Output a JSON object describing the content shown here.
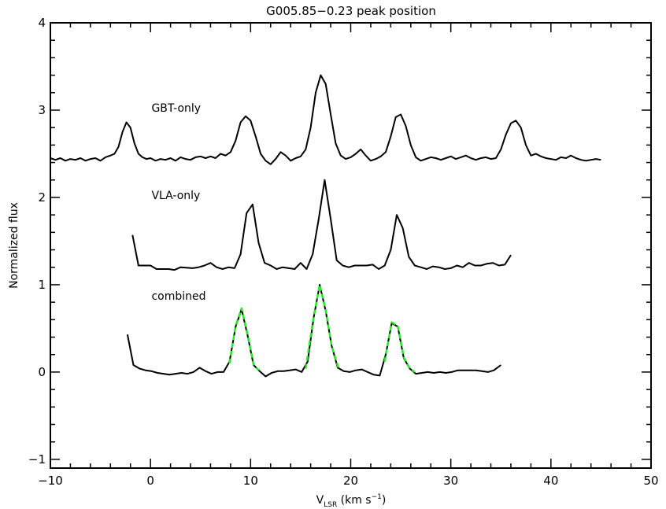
{
  "chart_data": {
    "type": "line",
    "title": "G005.85−0.23 peak position",
    "xlabel_main": "V",
    "xlabel_sub": "LSR",
    "xlabel_unit_open": " (km s",
    "xlabel_exp": "−1",
    "xlabel_unit_close": ")",
    "ylabel": "Normalized flux",
    "xlim": [
      -10,
      50
    ],
    "ylim": [
      -1.1,
      4.0
    ],
    "x_ticks": [
      -10,
      0,
      10,
      20,
      30,
      40,
      50
    ],
    "x_tick_labels": [
      "−10",
      "0",
      "10",
      "20",
      "30",
      "40",
      "50"
    ],
    "y_ticks": [
      -1,
      0,
      1,
      2,
      3,
      4
    ],
    "y_tick_labels": [
      "−1",
      "0",
      "1",
      "2",
      "3",
      "4"
    ],
    "x_minor_step": 2,
    "y_minor_step": 0.2,
    "grid": false,
    "annotations": [
      {
        "text": "GBT-only",
        "x": 0.1,
        "y": 2.98
      },
      {
        "text": "VLA-only",
        "x": 0.1,
        "y": 1.98
      },
      {
        "text": "combined",
        "x": 0.1,
        "y": 0.83
      }
    ],
    "series": [
      {
        "color": "#000000",
        "style": "solid",
        "points": [
          [
            -10,
            2.45
          ],
          [
            -9.5,
            2.43
          ],
          [
            -9,
            2.45
          ],
          [
            -8.5,
            2.42
          ],
          [
            -8,
            2.44
          ],
          [
            -7.5,
            2.43
          ],
          [
            -7,
            2.45
          ],
          [
            -6.5,
            2.42
          ],
          [
            -6,
            2.44
          ],
          [
            -5.5,
            2.45
          ],
          [
            -5,
            2.42
          ],
          [
            -4.5,
            2.46
          ],
          [
            -4,
            2.48
          ],
          [
            -3.6,
            2.5
          ],
          [
            -3.2,
            2.58
          ],
          [
            -2.8,
            2.75
          ],
          [
            -2.4,
            2.86
          ],
          [
            -2,
            2.8
          ],
          [
            -1.6,
            2.62
          ],
          [
            -1.2,
            2.5
          ],
          [
            -0.8,
            2.46
          ],
          [
            -0.4,
            2.44
          ],
          [
            0,
            2.45
          ],
          [
            0.5,
            2.42
          ],
          [
            1,
            2.44
          ],
          [
            1.5,
            2.43
          ],
          [
            2,
            2.45
          ],
          [
            2.5,
            2.42
          ],
          [
            3,
            2.46
          ],
          [
            3.5,
            2.44
          ],
          [
            4,
            2.43
          ],
          [
            4.5,
            2.46
          ],
          [
            5,
            2.47
          ],
          [
            5.5,
            2.45
          ],
          [
            6,
            2.47
          ],
          [
            6.5,
            2.45
          ],
          [
            7,
            2.5
          ],
          [
            7.5,
            2.48
          ],
          [
            8,
            2.52
          ],
          [
            8.5,
            2.65
          ],
          [
            9,
            2.86
          ],
          [
            9.5,
            2.93
          ],
          [
            10,
            2.88
          ],
          [
            10.5,
            2.7
          ],
          [
            11,
            2.5
          ],
          [
            11.5,
            2.42
          ],
          [
            12,
            2.38
          ],
          [
            12.5,
            2.44
          ],
          [
            13,
            2.52
          ],
          [
            13.5,
            2.48
          ],
          [
            14,
            2.42
          ],
          [
            14.5,
            2.45
          ],
          [
            15,
            2.47
          ],
          [
            15.5,
            2.55
          ],
          [
            16,
            2.8
          ],
          [
            16.5,
            3.2
          ],
          [
            17,
            3.4
          ],
          [
            17.5,
            3.3
          ],
          [
            18,
            2.95
          ],
          [
            18.5,
            2.62
          ],
          [
            19,
            2.48
          ],
          [
            19.5,
            2.44
          ],
          [
            20,
            2.46
          ],
          [
            20.5,
            2.5
          ],
          [
            21,
            2.55
          ],
          [
            21.5,
            2.48
          ],
          [
            22,
            2.42
          ],
          [
            22.5,
            2.44
          ],
          [
            23,
            2.47
          ],
          [
            23.5,
            2.52
          ],
          [
            24,
            2.7
          ],
          [
            24.5,
            2.92
          ],
          [
            25,
            2.95
          ],
          [
            25.5,
            2.82
          ],
          [
            26,
            2.6
          ],
          [
            26.5,
            2.46
          ],
          [
            27,
            2.42
          ],
          [
            27.5,
            2.44
          ],
          [
            28,
            2.46
          ],
          [
            28.5,
            2.45
          ],
          [
            29,
            2.43
          ],
          [
            29.5,
            2.45
          ],
          [
            30,
            2.47
          ],
          [
            30.5,
            2.44
          ],
          [
            31,
            2.46
          ],
          [
            31.5,
            2.48
          ],
          [
            32,
            2.45
          ],
          [
            32.5,
            2.43
          ],
          [
            33,
            2.45
          ],
          [
            33.5,
            2.46
          ],
          [
            34,
            2.44
          ],
          [
            34.5,
            2.45
          ],
          [
            35,
            2.55
          ],
          [
            35.5,
            2.72
          ],
          [
            36,
            2.85
          ],
          [
            36.5,
            2.88
          ],
          [
            37,
            2.8
          ],
          [
            37.5,
            2.6
          ],
          [
            38,
            2.48
          ],
          [
            38.5,
            2.5
          ],
          [
            39,
            2.47
          ],
          [
            39.5,
            2.45
          ],
          [
            40,
            2.44
          ],
          [
            40.5,
            2.43
          ],
          [
            41,
            2.46
          ],
          [
            41.5,
            2.45
          ],
          [
            42,
            2.48
          ],
          [
            42.5,
            2.45
          ],
          [
            43,
            2.43
          ],
          [
            43.5,
            2.42
          ],
          [
            44,
            2.43
          ],
          [
            44.5,
            2.44
          ],
          [
            45,
            2.43
          ]
        ]
      },
      {
        "color": "#000000",
        "style": "solid",
        "points": [
          [
            -1.8,
            1.57
          ],
          [
            -1.2,
            1.22
          ],
          [
            0,
            1.22
          ],
          [
            0.6,
            1.18
          ],
          [
            1.8,
            1.18
          ],
          [
            2.4,
            1.17
          ],
          [
            3.0,
            1.2
          ],
          [
            4.2,
            1.19
          ],
          [
            4.8,
            1.2
          ],
          [
            5.4,
            1.22
          ],
          [
            6.0,
            1.25
          ],
          [
            6.6,
            1.2
          ],
          [
            7.2,
            1.18
          ],
          [
            7.8,
            1.2
          ],
          [
            8.4,
            1.19
          ],
          [
            9.0,
            1.35
          ],
          [
            9.6,
            1.82
          ],
          [
            10.2,
            1.92
          ],
          [
            10.8,
            1.48
          ],
          [
            11.4,
            1.25
          ],
          [
            12.0,
            1.22
          ],
          [
            12.6,
            1.18
          ],
          [
            13.2,
            1.2
          ],
          [
            13.8,
            1.19
          ],
          [
            14.4,
            1.18
          ],
          [
            15.0,
            1.25
          ],
          [
            15.6,
            1.18
          ],
          [
            16.2,
            1.35
          ],
          [
            16.8,
            1.75
          ],
          [
            17.4,
            2.2
          ],
          [
            18.0,
            1.75
          ],
          [
            18.6,
            1.28
          ],
          [
            19.2,
            1.22
          ],
          [
            19.8,
            1.2
          ],
          [
            20.4,
            1.22
          ],
          [
            21.0,
            1.22
          ],
          [
            21.6,
            1.22
          ],
          [
            22.2,
            1.23
          ],
          [
            22.8,
            1.18
          ],
          [
            23.4,
            1.22
          ],
          [
            24.0,
            1.4
          ],
          [
            24.6,
            1.8
          ],
          [
            25.2,
            1.65
          ],
          [
            25.8,
            1.32
          ],
          [
            26.4,
            1.22
          ],
          [
            27.0,
            1.2
          ],
          [
            27.6,
            1.18
          ],
          [
            28.2,
            1.21
          ],
          [
            28.8,
            1.2
          ],
          [
            29.4,
            1.18
          ],
          [
            30.0,
            1.19
          ],
          [
            30.6,
            1.22
          ],
          [
            31.2,
            1.2
          ],
          [
            31.8,
            1.25
          ],
          [
            32.4,
            1.22
          ],
          [
            33.0,
            1.22
          ],
          [
            33.6,
            1.24
          ],
          [
            34.2,
            1.25
          ],
          [
            34.8,
            1.22
          ],
          [
            35.4,
            1.23
          ],
          [
            36.0,
            1.34
          ]
        ]
      },
      {
        "color": "#000000",
        "style": "solid",
        "points": [
          [
            -2.3,
            0.43
          ],
          [
            -1.7,
            0.08
          ],
          [
            -1.1,
            0.04
          ],
          [
            -0.5,
            0.02
          ],
          [
            0.1,
            0.01
          ],
          [
            0.7,
            -0.01
          ],
          [
            1.3,
            -0.02
          ],
          [
            1.9,
            -0.03
          ],
          [
            2.5,
            -0.02
          ],
          [
            3.1,
            -0.01
          ],
          [
            3.7,
            -0.02
          ],
          [
            4.3,
            0.0
          ],
          [
            4.9,
            0.05
          ],
          [
            5.5,
            0.01
          ],
          [
            6.1,
            -0.02
          ],
          [
            6.7,
            0.0
          ],
          [
            7.3,
            0.0
          ],
          [
            7.9,
            0.12
          ],
          [
            8.5,
            0.52
          ],
          [
            9.1,
            0.72
          ],
          [
            9.7,
            0.42
          ],
          [
            10.3,
            0.08
          ],
          [
            10.9,
            0.01
          ],
          [
            11.5,
            -0.05
          ],
          [
            12.1,
            -0.01
          ],
          [
            12.7,
            0.01
          ],
          [
            13.3,
            0.01
          ],
          [
            13.9,
            0.02
          ],
          [
            14.5,
            0.03
          ],
          [
            15.1,
            0.0
          ],
          [
            15.7,
            0.12
          ],
          [
            16.3,
            0.62
          ],
          [
            16.9,
            1.0
          ],
          [
            17.5,
            0.7
          ],
          [
            18.1,
            0.3
          ],
          [
            18.7,
            0.05
          ],
          [
            19.3,
            0.01
          ],
          [
            19.9,
            0.0
          ],
          [
            20.5,
            0.02
          ],
          [
            21.1,
            0.03
          ],
          [
            21.7,
            0.0
          ],
          [
            22.3,
            -0.03
          ],
          [
            22.9,
            -0.04
          ],
          [
            23.5,
            0.2
          ],
          [
            24.1,
            0.56
          ],
          [
            24.7,
            0.52
          ],
          [
            25.3,
            0.16
          ],
          [
            25.9,
            0.04
          ],
          [
            26.5,
            -0.02
          ],
          [
            27.1,
            -0.01
          ],
          [
            27.7,
            0.0
          ],
          [
            28.3,
            -0.01
          ],
          [
            28.9,
            0.0
          ],
          [
            29.5,
            -0.01
          ],
          [
            30.1,
            0.0
          ],
          [
            30.7,
            0.02
          ],
          [
            31.3,
            0.02
          ],
          [
            31.9,
            0.02
          ],
          [
            32.5,
            0.02
          ],
          [
            33.1,
            0.01
          ],
          [
            33.7,
            0.0
          ],
          [
            34.3,
            0.02
          ],
          [
            35.0,
            0.08
          ]
        ]
      },
      {
        "color": "#22ee22",
        "style": "dashed",
        "segments": [
          [
            [
              7.9,
              0.1
            ],
            [
              8.5,
              0.53
            ],
            [
              9.1,
              0.73
            ],
            [
              9.7,
              0.43
            ],
            [
              10.3,
              0.09
            ],
            [
              10.8,
              0.02
            ]
          ],
          [
            [
              15.5,
              0.04
            ],
            [
              16.3,
              0.63
            ],
            [
              16.9,
              1.0
            ],
            [
              17.5,
              0.71
            ],
            [
              18.1,
              0.3
            ],
            [
              18.8,
              0.04
            ]
          ],
          [
            [
              23.4,
              0.12
            ],
            [
              24.1,
              0.57
            ],
            [
              24.7,
              0.53
            ],
            [
              25.3,
              0.17
            ],
            [
              25.9,
              0.04
            ],
            [
              26.4,
              0.0
            ]
          ]
        ]
      }
    ]
  }
}
